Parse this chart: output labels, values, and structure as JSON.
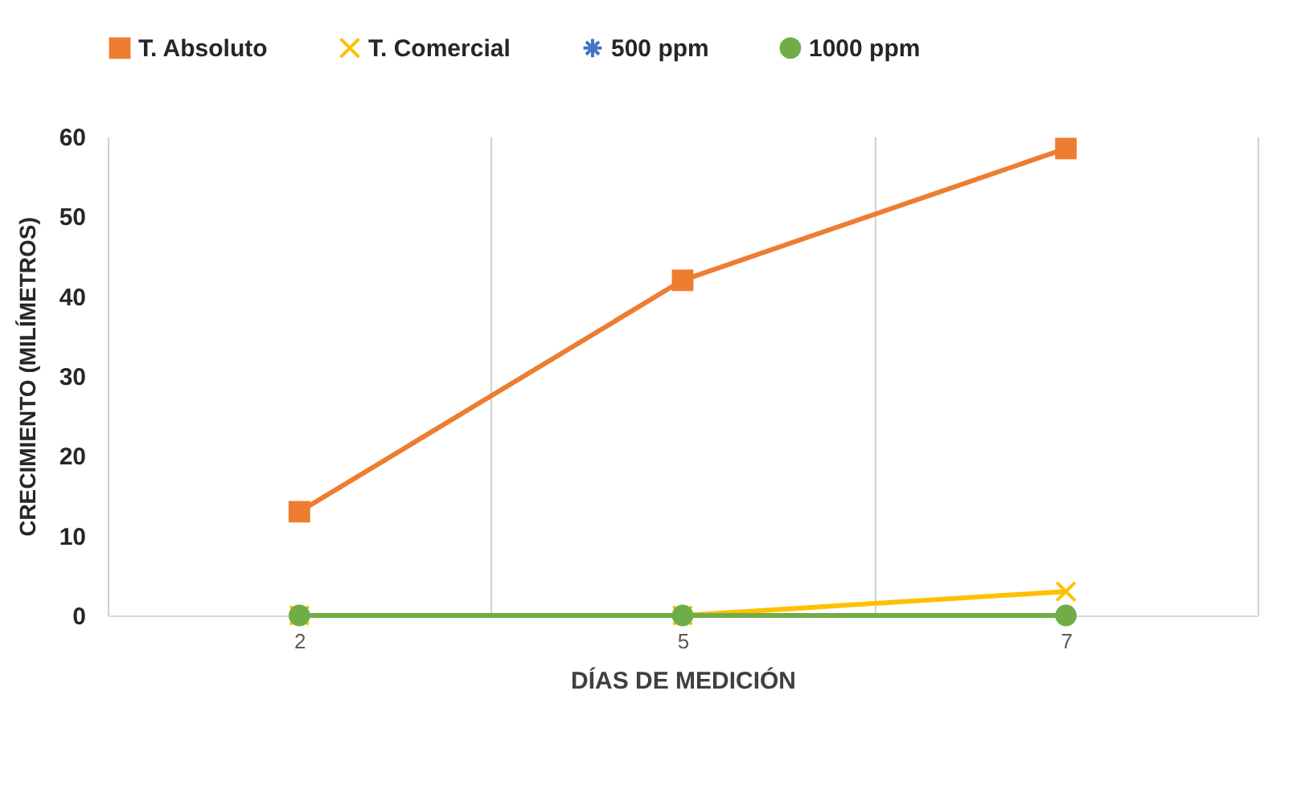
{
  "chart_data": {
    "type": "line",
    "xlabel": "DÍAS DE MEDICIÓN",
    "ylabel": "CRECIMIENTO  (MILÍMETROS)",
    "categories": [
      "2",
      "5",
      "7"
    ],
    "series": [
      {
        "name": "T. Absoluto",
        "color": "#ed7d31",
        "marker": "square",
        "values": [
          13,
          42,
          58.5
        ]
      },
      {
        "name": "T. Comercial",
        "color": "#ffc000",
        "marker": "cross",
        "values": [
          0,
          0,
          3
        ]
      },
      {
        "name": "500 ppm",
        "color": "#4472c4",
        "marker": "star",
        "values": [
          null,
          null,
          null
        ]
      },
      {
        "name": "1000 ppm",
        "color": "#70ad47",
        "marker": "circle",
        "values": [
          0,
          0,
          0
        ]
      }
    ],
    "ylim": [
      0,
      60
    ],
    "yticks": [
      0,
      10,
      20,
      30,
      40,
      50,
      60
    ],
    "grid": "x",
    "legend": "top",
    "line_style": "solid"
  }
}
